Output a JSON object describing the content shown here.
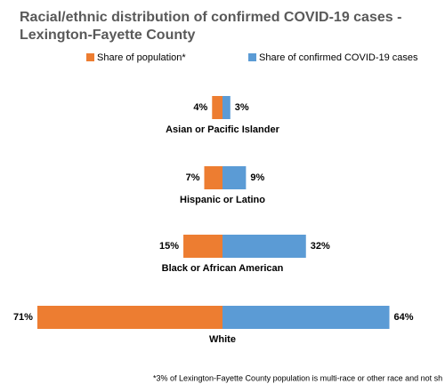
{
  "chart_data": {
    "type": "butterfly",
    "title": "Racial/ethnic distribution of confirmed COVID-19 cases -  Lexington-Fayette County",
    "categories": [
      "Asian or Pacific Islander",
      "Hispanic or Latino",
      "Black or African American",
      "White"
    ],
    "series": [
      {
        "name": "Share of population*",
        "color": "#ED7D31",
        "values": [
          4,
          7,
          15,
          71
        ],
        "value_labels": [
          "4%",
          "7%",
          "15%",
          "71%"
        ]
      },
      {
        "name": "Share of confirmed COVID-19 cases",
        "color": "#5B9BD5",
        "values": [
          3,
          9,
          32,
          64
        ],
        "value_labels": [
          "3%",
          "9%",
          "32%",
          "64%"
        ]
      }
    ],
    "footnote": "*3% of Lexington-Fayette County population is multi-race or other race and not sh"
  }
}
